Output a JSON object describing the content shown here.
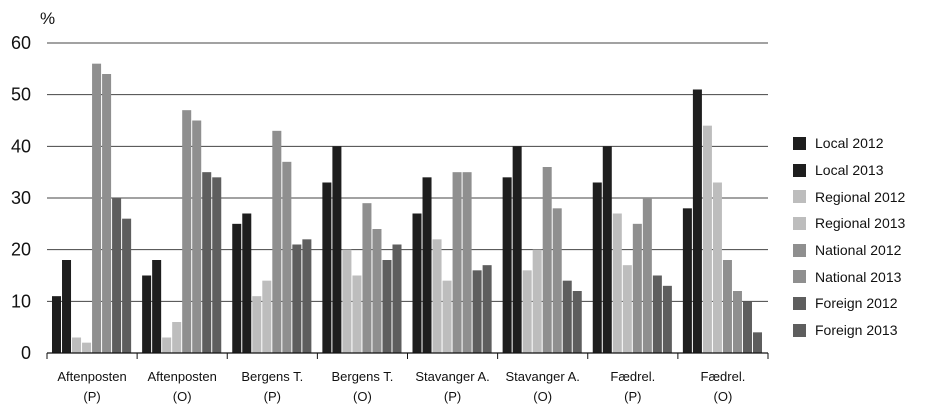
{
  "chart_data": {
    "type": "bar",
    "title": "",
    "xlabel": "",
    "ylabel": "%",
    "ylim": [
      0,
      60
    ],
    "yticks": [
      0,
      10,
      20,
      30,
      40,
      50,
      60
    ],
    "grid": true,
    "legend_position": "right",
    "categories": [
      [
        "Aftenposten",
        "(P)"
      ],
      [
        "Aftenposten",
        "(O)"
      ],
      [
        "Bergens T.",
        "(P)"
      ],
      [
        "Bergens T.",
        "(O)"
      ],
      [
        "Stavanger A.",
        "(P)"
      ],
      [
        "Stavanger A.",
        "(O)"
      ],
      [
        "Fædrel.",
        "(P)"
      ],
      [
        "Fædrel.",
        "(O)"
      ]
    ],
    "series": [
      {
        "name": "Local 2012",
        "color": "#1e1e1e",
        "values": [
          11,
          15,
          25,
          33,
          27,
          34,
          33,
          28
        ]
      },
      {
        "name": "Local 2013",
        "color": "#1e1e1e",
        "values": [
          18,
          18,
          27,
          40,
          34,
          40,
          40,
          51
        ]
      },
      {
        "name": "Regional 2012",
        "color": "#bdbdbd",
        "values": [
          3,
          3,
          11,
          20,
          22,
          16,
          27,
          44
        ]
      },
      {
        "name": "Regional 2013",
        "color": "#bdbdbd",
        "values": [
          2,
          6,
          14,
          15,
          14,
          20,
          17,
          33
        ]
      },
      {
        "name": "National 2012",
        "color": "#8f8f8f",
        "values": [
          56,
          47,
          43,
          29,
          35,
          36,
          25,
          18
        ]
      },
      {
        "name": "National 2013",
        "color": "#8f8f8f",
        "values": [
          54,
          45,
          37,
          24,
          35,
          28,
          30,
          12
        ]
      },
      {
        "name": "Foreign 2012",
        "color": "#5e5e5e",
        "values": [
          30,
          35,
          21,
          18,
          16,
          14,
          15,
          10
        ]
      },
      {
        "name": "Foreign 2013",
        "color": "#5e5e5e",
        "values": [
          26,
          34,
          22,
          21,
          17,
          12,
          13,
          4
        ]
      }
    ]
  }
}
